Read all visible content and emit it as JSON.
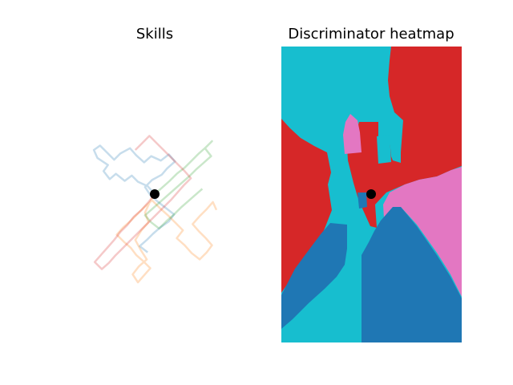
{
  "chart_data": [
    {
      "type": "line",
      "title": "Skills",
      "axes_visible": false,
      "start_point": {
        "x": 0,
        "y": 0,
        "color": "#000000"
      },
      "series": [
        {
          "color": "#1f77b4",
          "alpha": 0.25,
          "x": [
            0,
            -0.8,
            -1.9,
            -2.6,
            -3.4,
            -4.4,
            -5.1,
            -5.8,
            -5.3,
            -6.5,
            -6.9,
            -6.2,
            -5.4,
            -4.6,
            -3.9,
            -2.8,
            -2.1,
            -1.2,
            -0.4,
            0.7,
            1.6,
            2.3,
            1.4,
            0.8,
            -0.3,
            -1.1,
            -0.5,
            0.4,
            1.3,
            2.2,
            1.6,
            0.6,
            -0.2,
            -0.9,
            -1.7,
            -0.8
          ],
          "y": [
            0,
            0.9,
            1.4,
            2.1,
            1.5,
            2.3,
            1.7,
            2.6,
            3.3,
            4.1,
            5.0,
            5.5,
            4.7,
            3.9,
            4.6,
            5.2,
            4.4,
            3.6,
            4.3,
            3.8,
            4.5,
            3.7,
            2.9,
            2.2,
            1.6,
            0.8,
            -0.1,
            -0.9,
            -1.6,
            -2.3,
            -3.1,
            -3.8,
            -4.5,
            -5.2,
            -5.9,
            -6.6
          ]
        },
        {
          "color": "#ff7f0e",
          "alpha": 0.25,
          "x": [
            0,
            -0.6,
            -1.1,
            -0.7,
            -1.5,
            -2.2,
            -1.6,
            -0.9,
            -1.8,
            -2.5,
            -1.9,
            -1.2,
            -0.5,
            -1.3,
            -2.1,
            -2.7,
            -3.5,
            -4.3,
            -3.6,
            -2.8,
            -2.0,
            -1.2,
            -0.3,
            0.6,
            1.5,
            2.4,
            3.2,
            2.5,
            3.4,
            4.2,
            5.1,
            5.9,
            6.5,
            5.8,
            5.0,
            4.3,
            5.1,
            5.9,
            6.6,
            7.0
          ],
          "y": [
            0,
            -1.0,
            -2.1,
            -3.2,
            -4.1,
            -5.2,
            -6.3,
            -7.4,
            -8.2,
            -9.1,
            -10.0,
            -9.2,
            -8.4,
            -7.6,
            -6.9,
            -6.1,
            -5.4,
            -4.6,
            -3.8,
            -3.1,
            -2.3,
            -1.5,
            -0.7,
            -1.6,
            -2.4,
            -3.3,
            -4.1,
            -5.0,
            -5.8,
            -6.7,
            -7.4,
            -6.6,
            -5.8,
            -5.0,
            -4.2,
            -3.4,
            -2.5,
            -1.7,
            -0.9,
            -1.8
          ]
        },
        {
          "color": "#2ca02c",
          "alpha": 0.25,
          "x": [
            0,
            0.8,
            1.7,
            2.5,
            3.4,
            4.2,
            5.0,
            5.8,
            6.5,
            5.7,
            6.4,
            5.5,
            4.7,
            3.9,
            3.1,
            2.3,
            1.4,
            0.6,
            -0.3,
            -1.1,
            -0.4,
            0.5,
            1.3,
            2.2,
            3.0,
            3.8,
            4.6,
            5.4
          ],
          "y": [
            0,
            0.7,
            1.5,
            2.3,
            3.0,
            3.8,
            4.6,
            5.3,
            6.0,
            5.2,
            4.3,
            3.5,
            2.8,
            2.0,
            1.3,
            0.6,
            -0.2,
            -0.9,
            -1.7,
            -2.4,
            -3.2,
            -3.9,
            -3.1,
            -2.3,
            -1.5,
            -0.8,
            -0.1,
            0.6
          ]
        },
        {
          "color": "#d62728",
          "alpha": 0.25,
          "x": [
            0,
            -0.7,
            -1.5,
            -2.4,
            -3.1,
            -3.9,
            -4.6,
            -5.3,
            -6.1,
            -6.8,
            -6.0,
            -5.2,
            -4.5,
            -3.7,
            -2.9,
            -2.1,
            -1.3,
            -0.5,
            0.3,
            1.1,
            1.9,
            2.6,
            3.3,
            4.1,
            3.4,
            2.6,
            1.8,
            1.0,
            0.2,
            -0.6,
            -1.4,
            -2.2
          ],
          "y": [
            0,
            -0.9,
            -1.8,
            -2.6,
            -3.5,
            -4.3,
            -5.2,
            -6.0,
            -6.9,
            -7.7,
            -8.5,
            -7.8,
            -7.0,
            -6.2,
            -5.4,
            -4.6,
            -3.8,
            -3.0,
            -2.2,
            -1.4,
            -0.6,
            0.2,
            1.0,
            1.8,
            2.6,
            3.4,
            4.2,
            5.0,
            5.8,
            6.6,
            5.8,
            5.0
          ]
        }
      ]
    },
    {
      "type": "heatmap",
      "title": "Discriminator heatmap",
      "axes_visible": false,
      "start_point": {
        "x": 0,
        "y": 0,
        "color": "#000000"
      },
      "classes": [
        {
          "color": "#17becf"
        },
        {
          "color": "#d62728"
        },
        {
          "color": "#e377c2"
        },
        {
          "color": "#1f77b4"
        }
      ]
    }
  ]
}
